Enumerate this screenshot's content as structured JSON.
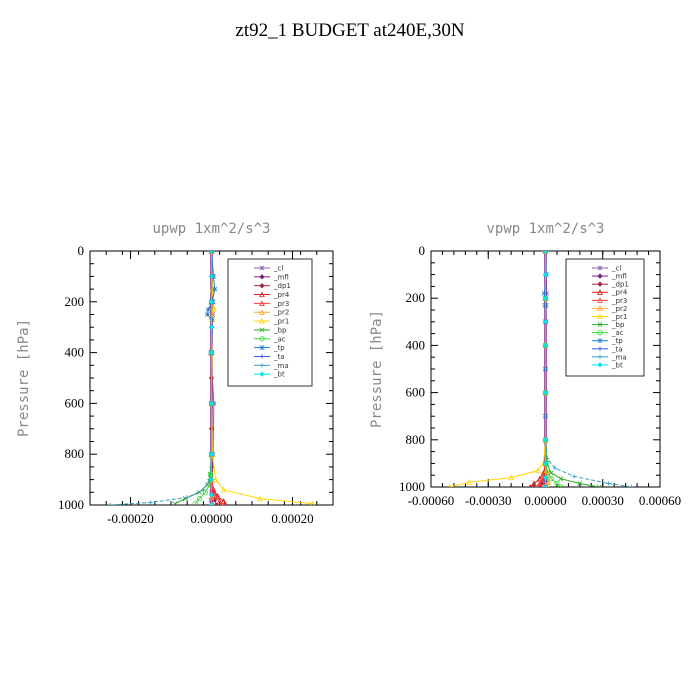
{
  "title": "zt92_1  BUDGET at240E,30N",
  "colors": {
    "cl": "#8e5fa8",
    "mfl": "#7a1e7a",
    "dp1": "#a3213f",
    "pr4": "#d11b1b",
    "pr3": "#ff3b3b",
    "pr2": "#ffa726",
    "pr1": "#ffd700",
    "bp": "#2ba82b",
    "ac": "#33dd33",
    "tp": "#1a7fd4",
    "ta": "#3355dd",
    "ma": "#33a0c8",
    "bt": "#00e5ee"
  },
  "chart_data": [
    {
      "type": "line",
      "title": "upwp   1xm^2/s^3",
      "ylabel": "Pressure [hPa]",
      "xlabel": "",
      "y_inverted": true,
      "ylim": [
        1000,
        0
      ],
      "xlim": [
        -0.0003,
        0.0003
      ],
      "xticks": [
        -0.0002,
        0.0,
        0.0002
      ],
      "xtick_labels": [
        "-0.00020",
        "0.00000",
        "0.00020"
      ],
      "yticks": [
        0,
        200,
        400,
        600,
        800,
        1000
      ],
      "ytick_labels": [
        "0",
        "200",
        "400",
        "600",
        "800",
        "1000"
      ],
      "legend_position": "top-right",
      "grid": false,
      "series": [
        {
          "name": "_cl",
          "key": "cl",
          "x": [
            0,
            2e-06,
            4e-06,
            3e-06,
            -2e-06,
            6e-06,
            4e-06,
            0,
            -1e-06,
            1e-06
          ],
          "y": [
            0,
            100,
            200,
            250,
            400,
            600,
            800,
            950,
            980,
            1000
          ]
        },
        {
          "name": "_mfl",
          "key": "mfl",
          "x": [
            0,
            0,
            0,
            0,
            0,
            0,
            0,
            0,
            0,
            0
          ],
          "y": [
            0,
            100,
            200,
            300,
            400,
            600,
            800,
            900,
            960,
            1000
          ]
        },
        {
          "name": "_dp1",
          "key": "dp1",
          "x": [
            0,
            0,
            0,
            0,
            0,
            0,
            1e-06,
            3e-06,
            8e-06,
            1.2e-05
          ],
          "y": [
            0,
            100,
            200,
            300,
            500,
            700,
            850,
            940,
            980,
            1000
          ]
        },
        {
          "name": "_pr4",
          "key": "pr4",
          "x": [
            0,
            0,
            0,
            0,
            0,
            0,
            5e-06,
            1.5e-05,
            3e-05,
            3.5e-05
          ],
          "y": [
            0,
            200,
            400,
            600,
            800,
            900,
            940,
            965,
            985,
            1000
          ]
        },
        {
          "name": "_pr3",
          "key": "pr3",
          "x": [
            0,
            0,
            0,
            0,
            0,
            0,
            4e-06,
            1e-05,
            2e-05,
            2.5e-05
          ],
          "y": [
            0,
            200,
            400,
            600,
            800,
            900,
            940,
            965,
            985,
            1000
          ]
        },
        {
          "name": "_pr2",
          "key": "pr2",
          "x": [
            0,
            2e-06,
            4e-06,
            0,
            0,
            0,
            0,
            0,
            0,
            0
          ],
          "y": [
            0,
            150,
            220,
            260,
            400,
            600,
            800,
            900,
            970,
            1000
          ]
        },
        {
          "name": "_pr1",
          "key": "pr1",
          "x": [
            0,
            3e-06,
            5e-06,
            2e-06,
            0,
            2e-06,
            1e-05,
            3e-05,
            0.00012,
            0.00025
          ],
          "y": [
            0,
            150,
            230,
            270,
            600,
            800,
            900,
            940,
            975,
            995
          ]
        },
        {
          "name": "_bp",
          "key": "bp",
          "x": [
            0,
            0,
            0,
            0,
            0,
            -3e-06,
            -1e-05,
            -3e-05,
            -6.5e-05,
            -9e-05
          ],
          "y": [
            0,
            200,
            400,
            600,
            800,
            880,
            920,
            950,
            975,
            995
          ]
        },
        {
          "name": "_ac",
          "key": "ac",
          "x": [
            0,
            0,
            0,
            0,
            0,
            -2e-06,
            -5e-06,
            -1.5e-05,
            -3e-05,
            -4e-05
          ],
          "y": [
            0,
            200,
            400,
            600,
            800,
            880,
            920,
            950,
            975,
            995
          ]
        },
        {
          "name": "_tp",
          "key": "tp",
          "x": [
            0,
            5e-06,
            8e-06,
            2e-06,
            -8e-06,
            -1e-05,
            1e-06,
            0,
            0,
            0
          ],
          "y": [
            0,
            100,
            150,
            200,
            230,
            250,
            270,
            400,
            600,
            800
          ]
        },
        {
          "name": "_ta",
          "key": "ta",
          "x": [
            0,
            1e-06,
            -1e-06,
            2e-06,
            0,
            0,
            0,
            0,
            0,
            0
          ],
          "y": [
            0,
            100,
            200,
            300,
            400,
            600,
            800,
            900,
            960,
            1000
          ]
        },
        {
          "name": "_ma",
          "key": "ma",
          "x": [
            0,
            0,
            0,
            0,
            0,
            -5e-06,
            -2e-05,
            -6e-05,
            -0.00015,
            -0.00025
          ],
          "y": [
            0,
            200,
            400,
            600,
            800,
            900,
            940,
            970,
            990,
            1000
          ]
        },
        {
          "name": "_bt",
          "key": "bt",
          "x": [
            0,
            0,
            0,
            0,
            0,
            0,
            0,
            0,
            0,
            0
          ],
          "y": [
            0,
            100,
            200,
            300,
            400,
            600,
            800,
            900,
            960,
            1000
          ]
        }
      ]
    },
    {
      "type": "line",
      "title": "vpwp   1xm^2/s^3",
      "ylabel": "Pressure [hPa]",
      "xlabel": "",
      "y_inverted": true,
      "ylim": [
        1000,
        0
      ],
      "xlim": [
        -0.0006,
        0.0006
      ],
      "xticks": [
        -0.0006,
        -0.0003,
        0.0,
        0.0003,
        0.0006
      ],
      "xtick_labels": [
        "-0.00060",
        "-0.00030",
        "0.00000",
        "0.00030",
        "0.00060"
      ],
      "yticks": [
        0,
        200,
        400,
        600,
        800,
        1000
      ],
      "ytick_labels": [
        "0",
        "200",
        "400",
        "600",
        "800",
        "1000"
      ],
      "legend_position": "top-right",
      "grid": false,
      "series": [
        {
          "name": "_cl",
          "key": "cl",
          "x": [
            0,
            3e-06,
            5e-06,
            -3e-06,
            2e-06,
            0,
            0,
            0,
            0,
            0
          ],
          "y": [
            0,
            100,
            180,
            230,
            300,
            500,
            700,
            900,
            970,
            1000
          ]
        },
        {
          "name": "_mfl",
          "key": "mfl",
          "x": [
            0,
            0,
            0,
            0,
            0,
            0,
            0,
            0,
            0,
            0
          ],
          "y": [
            0,
            100,
            200,
            300,
            400,
            600,
            800,
            900,
            960,
            1000
          ]
        },
        {
          "name": "_dp1",
          "key": "dp1",
          "x": [
            0,
            0,
            0,
            0,
            0,
            0,
            -2e-06,
            -8e-06,
            -2e-05,
            -3e-05
          ],
          "y": [
            0,
            200,
            400,
            600,
            800,
            900,
            940,
            965,
            985,
            1000
          ]
        },
        {
          "name": "_pr4",
          "key": "pr4",
          "x": [
            0,
            0,
            0,
            0,
            0,
            0,
            -1e-05,
            -3e-05,
            -6e-05,
            -8e-05
          ],
          "y": [
            0,
            200,
            400,
            600,
            800,
            900,
            940,
            965,
            985,
            1000
          ]
        },
        {
          "name": "_pr3",
          "key": "pr3",
          "x": [
            0,
            0,
            0,
            0,
            0,
            0,
            -5e-06,
            -1.5e-05,
            -3e-05,
            -4e-05
          ],
          "y": [
            0,
            200,
            400,
            600,
            800,
            900,
            940,
            965,
            985,
            1000
          ]
        },
        {
          "name": "_pr2",
          "key": "pr2",
          "x": [
            0,
            0,
            0,
            0,
            0,
            0,
            5e-06,
            1e-05,
            1.5e-05,
            1e-05
          ],
          "y": [
            0,
            200,
            400,
            600,
            800,
            900,
            930,
            960,
            980,
            1000
          ]
        },
        {
          "name": "_pr1",
          "key": "pr1",
          "x": [
            0,
            0,
            0,
            0,
            0,
            -1e-05,
            -4e-05,
            -0.00018,
            -0.0004,
            -0.0005
          ],
          "y": [
            0,
            200,
            400,
            600,
            800,
            900,
            930,
            960,
            980,
            1000
          ]
        },
        {
          "name": "_bp",
          "key": "bp",
          "x": [
            0,
            0,
            0,
            0,
            0,
            5e-06,
            3e-05,
            8e-05,
            0.00018,
            0.00028
          ],
          "y": [
            0,
            200,
            400,
            600,
            800,
            900,
            940,
            965,
            985,
            1000
          ]
        },
        {
          "name": "_ac",
          "key": "ac",
          "x": [
            0,
            0,
            0,
            0,
            0,
            3e-06,
            1e-05,
            3e-05,
            6e-05,
            8e-05
          ],
          "y": [
            0,
            200,
            400,
            600,
            800,
            900,
            940,
            965,
            985,
            1000
          ]
        },
        {
          "name": "_tp",
          "key": "tp",
          "x": [
            0,
            4e-06,
            -6e-06,
            3e-06,
            0,
            0,
            0,
            0,
            0,
            0
          ],
          "y": [
            0,
            100,
            180,
            230,
            300,
            500,
            700,
            900,
            970,
            1000
          ]
        },
        {
          "name": "_ta",
          "key": "ta",
          "x": [
            0,
            0,
            0,
            0,
            0,
            0,
            0,
            0,
            0,
            0
          ],
          "y": [
            0,
            100,
            200,
            300,
            400,
            600,
            800,
            900,
            960,
            1000
          ]
        },
        {
          "name": "_ma",
          "key": "ma",
          "x": [
            0,
            0,
            0,
            0,
            0,
            1e-05,
            5e-05,
            0.00015,
            0.00033,
            0.00045
          ],
          "y": [
            0,
            200,
            400,
            600,
            800,
            880,
            920,
            955,
            985,
            1000
          ]
        },
        {
          "name": "_bt",
          "key": "bt",
          "x": [
            0,
            0,
            0,
            0,
            0,
            0,
            0,
            0,
            0,
            0
          ],
          "y": [
            0,
            100,
            200,
            300,
            400,
            600,
            800,
            900,
            960,
            1000
          ]
        }
      ]
    }
  ]
}
